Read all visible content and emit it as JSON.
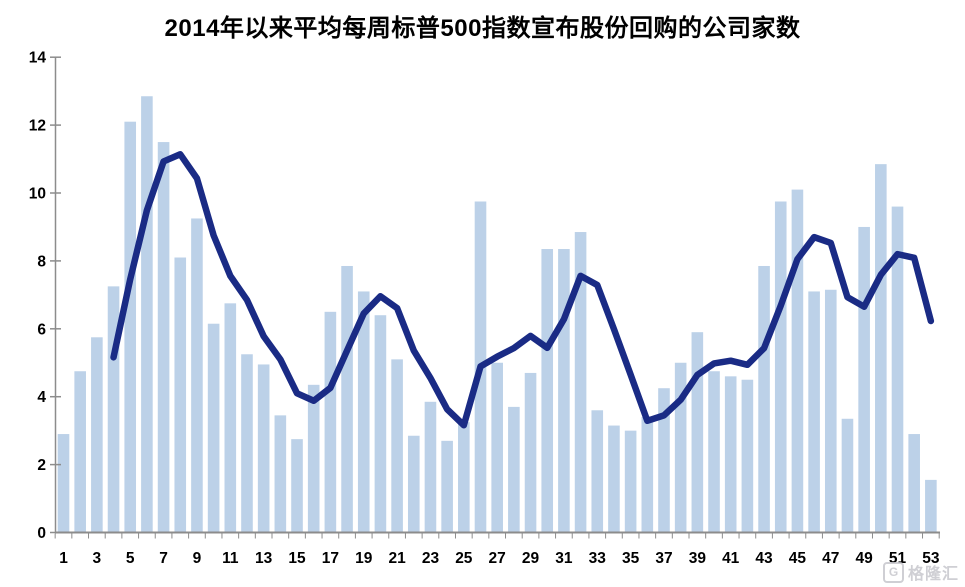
{
  "title": "2014年以来平均每周标普500指数宣布股份回购的公司家数",
  "watermark": {
    "logo_glyph": "G",
    "text": "格隆汇"
  },
  "colors": {
    "background": "#ffffff",
    "bar": "#bcd1e8",
    "line": "#1a2b85",
    "axis": "#8c8c8c",
    "tick_label": "#000000",
    "title": "#000000",
    "watermark": "#c7c7cd"
  },
  "chart_data": {
    "type": "bar",
    "title": "2014年以来平均每周标普500指数宣布股份回购的公司家数",
    "xlabel": "",
    "ylabel": "",
    "ylim": [
      0,
      14
    ],
    "y_ticks": [
      0,
      2,
      4,
      6,
      8,
      10,
      12,
      14
    ],
    "weeks": [
      1,
      2,
      3,
      4,
      5,
      6,
      7,
      8,
      9,
      10,
      11,
      12,
      13,
      14,
      15,
      16,
      17,
      18,
      19,
      20,
      21,
      22,
      23,
      24,
      25,
      26,
      27,
      28,
      29,
      30,
      31,
      32,
      33,
      34,
      35,
      36,
      37,
      38,
      39,
      40,
      41,
      42,
      43,
      44,
      45,
      46,
      47,
      48,
      49,
      50,
      51,
      52,
      53
    ],
    "x_tick_labels": [
      "1",
      "3",
      "5",
      "7",
      "9",
      "11",
      "13",
      "15",
      "17",
      "19",
      "21",
      "23",
      "25",
      "27",
      "29",
      "31",
      "33",
      "35",
      "37",
      "39",
      "41",
      "43",
      "45",
      "47",
      "49",
      "51",
      "53"
    ],
    "grid": false,
    "legend": "none",
    "series": [
      {
        "id": "weekly-buyback-count-bars",
        "type": "bar",
        "values": [
          2.9,
          4.75,
          5.75,
          7.25,
          12.1,
          12.85,
          11.5,
          8.1,
          9.25,
          6.15,
          6.75,
          5.25,
          4.95,
          3.45,
          2.75,
          4.35,
          6.5,
          7.85,
          7.1,
          6.4,
          5.1,
          2.85,
          3.85,
          2.7,
          3.25,
          9.75,
          5.0,
          3.7,
          4.7,
          8.35,
          8.35,
          8.85,
          3.6,
          3.15,
          3.0,
          3.4,
          4.25,
          5.0,
          5.9,
          4.75,
          4.6,
          4.5,
          7.85,
          9.75,
          10.1,
          7.1,
          7.15,
          3.35,
          9.0,
          10.85,
          9.6,
          2.9,
          1.55
        ]
      },
      {
        "id": "smoothed-average-line",
        "type": "line",
        "values": [
          null,
          null,
          null,
          5.16,
          7.46,
          9.49,
          10.93,
          11.14,
          10.43,
          8.75,
          7.56,
          6.85,
          5.78,
          5.1,
          4.1,
          3.88,
          4.26,
          5.36,
          6.45,
          6.96,
          6.61,
          5.36,
          4.55,
          3.63,
          3.16,
          4.89,
          5.18,
          5.43,
          5.79,
          5.44,
          6.28,
          7.56,
          7.29,
          5.99,
          4.65,
          3.29,
          3.45,
          3.91,
          4.64,
          4.98,
          5.06,
          4.94,
          5.43,
          6.68,
          8.05,
          8.7,
          8.53,
          6.93,
          6.65,
          7.59,
          8.2,
          8.09,
          6.23
        ]
      }
    ]
  }
}
